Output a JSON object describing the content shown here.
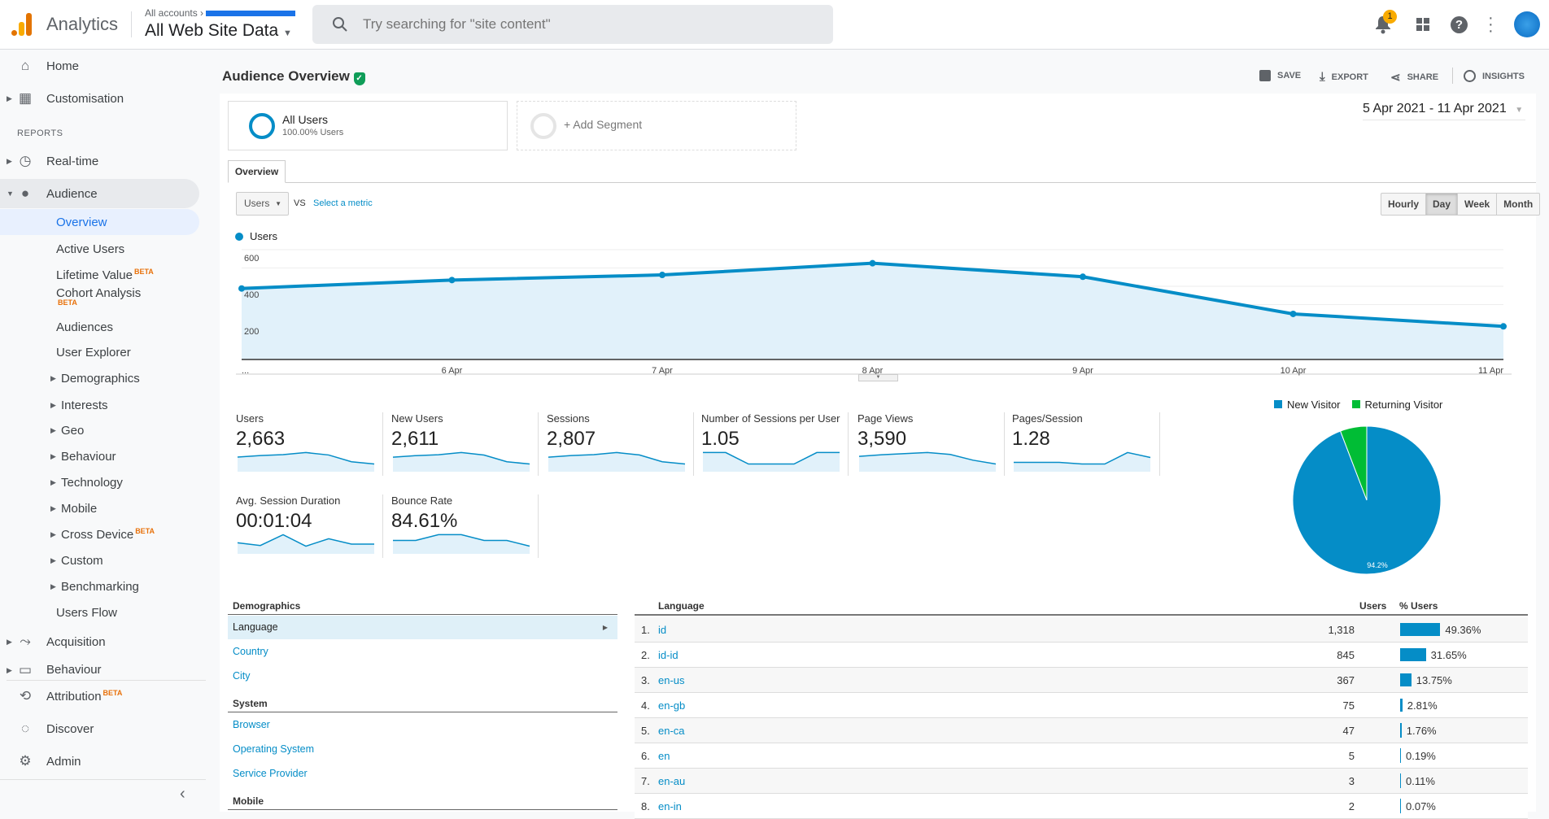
{
  "app": {
    "name": "Analytics",
    "breadcrumb_root": "All accounts",
    "view": "All Web Site Data",
    "search_placeholder": "Try searching for \"site content\"",
    "notification_count": "1"
  },
  "sidebar": {
    "home": "Home",
    "customisation": "Customisation",
    "reports_heading": "REPORTS",
    "realtime": "Real-time",
    "audience": "Audience",
    "audience_items": [
      "Overview",
      "Active Users",
      "Lifetime Value",
      "Cohort Analysis",
      "Audiences",
      "User Explorer",
      "Demographics",
      "Interests",
      "Geo",
      "Behaviour",
      "Technology",
      "Mobile",
      "Cross Device",
      "Custom",
      "Benchmarking",
      "Users Flow"
    ],
    "beta": "BETA",
    "acquisition": "Acquisition",
    "behaviour": "Behaviour",
    "attribution": "Attribution",
    "discover": "Discover",
    "admin": "Admin"
  },
  "header": {
    "title": "Audience Overview",
    "save": "SAVE",
    "export": "EXPORT",
    "share": "SHARE",
    "insights": "INSIGHTS"
  },
  "segments": {
    "all_users": "All Users",
    "all_users_sub": "100.00% Users",
    "add": "+ Add Segment"
  },
  "date_range": "5 Apr 2021 - 11 Apr 2021",
  "tabs": {
    "overview": "Overview"
  },
  "metric_selector": {
    "selected": "Users",
    "vs": "VS",
    "select": "Select a metric"
  },
  "granularity": {
    "options": [
      "Hourly",
      "Day",
      "Week",
      "Month"
    ],
    "selected": "Day"
  },
  "chart_data": {
    "type": "area",
    "series": [
      {
        "name": "Users",
        "values": [
          388,
          434,
          462,
          526,
          452,
          249,
          181
        ]
      }
    ],
    "categories": [
      "...",
      "6 Apr",
      "7 Apr",
      "8 Apr",
      "9 Apr",
      "10 Apr",
      "11 Apr"
    ],
    "yticks": [
      "600",
      "400",
      "200"
    ],
    "ylim": [
      0,
      600
    ],
    "grid": true,
    "legend": "top-left",
    "color": "#058dc7"
  },
  "metrics": [
    {
      "label": "Users",
      "value": "2,663",
      "spark": [
        388,
        434,
        462,
        526,
        452,
        249,
        181
      ]
    },
    {
      "label": "New Users",
      "value": "2,611",
      "spark": [
        380,
        425,
        452,
        516,
        442,
        244,
        177
      ]
    },
    {
      "label": "Sessions",
      "value": "2,807",
      "spark": [
        405,
        455,
        485,
        550,
        475,
        262,
        190
      ]
    },
    {
      "label": "Number of Sessions per User",
      "value": "1.05",
      "spark": [
        1.05,
        1.05,
        1.04,
        1.04,
        1.04,
        1.05,
        1.05
      ]
    },
    {
      "label": "Page Views",
      "value": "3,590",
      "spark": [
        500,
        560,
        600,
        640,
        570,
        360,
        220
      ]
    },
    {
      "label": "Pages/Session",
      "value": "1.28",
      "spark": [
        1.25,
        1.25,
        1.25,
        1.24,
        1.24,
        1.31,
        1.28
      ]
    },
    {
      "label": "Avg. Session Duration",
      "value": "00:01:04",
      "spark": [
        60,
        56,
        72,
        55,
        66,
        58,
        58
      ]
    },
    {
      "label": "Bounce Rate",
      "value": "84.61%",
      "spark": [
        84,
        84,
        85,
        85,
        84,
        84,
        83
      ]
    }
  ],
  "pie": {
    "legend": [
      {
        "label": "New Visitor",
        "color": "#058dc7"
      },
      {
        "label": "Returning Visitor",
        "color": "#00bd35"
      }
    ],
    "values": [
      94.2,
      5.8
    ],
    "label": "94.2%"
  },
  "demographics": {
    "sections": [
      {
        "heading": "Demographics",
        "items": [
          "Language",
          "Country",
          "City"
        ]
      },
      {
        "heading": "System",
        "items": [
          "Browser",
          "Operating System",
          "Service Provider"
        ]
      },
      {
        "heading": "Mobile",
        "items": []
      }
    ],
    "selected": "Language"
  },
  "language_table": {
    "headers": {
      "dimension": "Language",
      "users": "Users",
      "pct": "% Users"
    },
    "rows": [
      {
        "rank": "1.",
        "lang": "id",
        "users": "1,318",
        "pct": "49.36%",
        "p": 49.36
      },
      {
        "rank": "2.",
        "lang": "id-id",
        "users": "845",
        "pct": "31.65%",
        "p": 31.65
      },
      {
        "rank": "3.",
        "lang": "en-us",
        "users": "367",
        "pct": "13.75%",
        "p": 13.75
      },
      {
        "rank": "4.",
        "lang": "en-gb",
        "users": "75",
        "pct": "2.81%",
        "p": 2.81
      },
      {
        "rank": "5.",
        "lang": "en-ca",
        "users": "47",
        "pct": "1.76%",
        "p": 1.76
      },
      {
        "rank": "6.",
        "lang": "en",
        "users": "5",
        "pct": "0.19%",
        "p": 0.19
      },
      {
        "rank": "7.",
        "lang": "en-au",
        "users": "3",
        "pct": "0.11%",
        "p": 0.11
      },
      {
        "rank": "8.",
        "lang": "en-in",
        "users": "2",
        "pct": "0.07%",
        "p": 0.07
      }
    ]
  }
}
